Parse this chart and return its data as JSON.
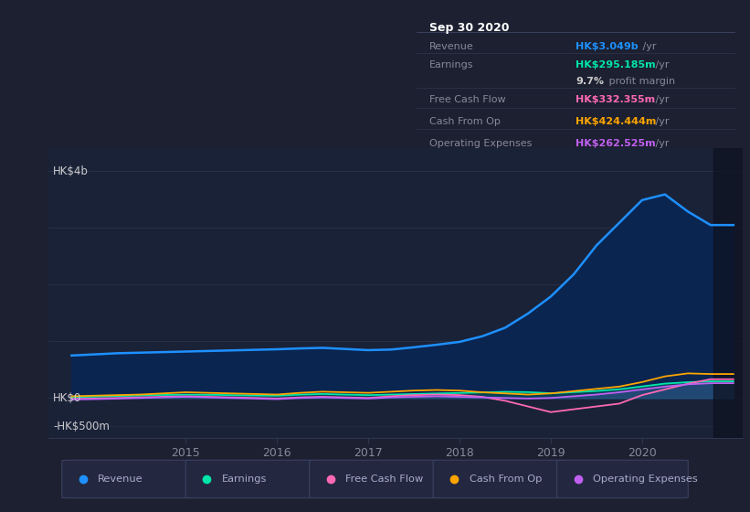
{
  "bg_color": "#1c2030",
  "plot_bg_color": "#1a2238",
  "grid_color": "#2e3650",
  "title_text": "Sep 30 2020",
  "info_box": {
    "rows": [
      {
        "label": "Revenue",
        "value": "HK$3.049b",
        "unit": " /yr",
        "value_color": "#1e90ff"
      },
      {
        "label": "Earnings",
        "value": "HK$295.185m",
        "unit": " /yr",
        "value_color": "#00e5aa"
      },
      {
        "label": "",
        "value": "9.7%",
        "unit": " profit margin",
        "value_color": "#cccccc"
      },
      {
        "label": "Free Cash Flow",
        "value": "HK$332.355m",
        "unit": " /yr",
        "value_color": "#ff69b4"
      },
      {
        "label": "Cash From Op",
        "value": "HK$424.444m",
        "unit": " /yr",
        "value_color": "#ffa500"
      },
      {
        "label": "Operating Expenses",
        "value": "HK$262.525m",
        "unit": " /yr",
        "value_color": "#c060f0"
      }
    ]
  },
  "ytick_labels": [
    "HK$4b",
    "HK$0",
    "-HK$500m"
  ],
  "ytick_values": [
    4000,
    0,
    -500
  ],
  "ylim": [
    -700,
    4400
  ],
  "xlim_start": 2013.5,
  "xlim_end": 2021.1,
  "vspan_x": 2020.78,
  "revenue_x": [
    2013.75,
    2014.0,
    2014.25,
    2014.5,
    2014.75,
    2015.0,
    2015.25,
    2015.5,
    2015.75,
    2016.0,
    2016.25,
    2016.5,
    2016.75,
    2017.0,
    2017.25,
    2017.5,
    2017.75,
    2018.0,
    2018.25,
    2018.5,
    2018.75,
    2019.0,
    2019.25,
    2019.5,
    2019.75,
    2020.0,
    2020.25,
    2020.5,
    2020.75,
    2021.0
  ],
  "revenue_y": [
    750,
    770,
    790,
    800,
    810,
    820,
    830,
    840,
    850,
    860,
    875,
    885,
    865,
    845,
    855,
    895,
    940,
    990,
    1090,
    1240,
    1490,
    1790,
    2180,
    2690,
    3090,
    3490,
    3590,
    3290,
    3050,
    3050
  ],
  "earnings_x": [
    2013.75,
    2014.0,
    2014.25,
    2014.5,
    2014.75,
    2015.0,
    2015.25,
    2015.5,
    2015.75,
    2016.0,
    2016.25,
    2016.5,
    2016.75,
    2017.0,
    2017.25,
    2017.5,
    2017.75,
    2018.0,
    2018.25,
    2018.5,
    2018.75,
    2019.0,
    2019.25,
    2019.5,
    2019.75,
    2020.0,
    2020.25,
    2020.5,
    2020.75,
    2021.0
  ],
  "earnings_y": [
    15,
    25,
    35,
    45,
    55,
    60,
    58,
    52,
    46,
    42,
    62,
    72,
    62,
    52,
    62,
    72,
    82,
    90,
    100,
    110,
    105,
    85,
    105,
    125,
    155,
    205,
    255,
    280,
    295,
    295
  ],
  "fcf_x": [
    2013.75,
    2014.0,
    2014.25,
    2014.5,
    2014.75,
    2015.0,
    2015.25,
    2015.5,
    2015.75,
    2016.0,
    2016.25,
    2016.5,
    2016.75,
    2017.0,
    2017.25,
    2017.5,
    2017.75,
    2018.0,
    2018.25,
    2018.5,
    2018.75,
    2019.0,
    2019.25,
    2019.5,
    2019.75,
    2020.0,
    2020.25,
    2020.5,
    2020.75,
    2021.0
  ],
  "fcf_y": [
    -15,
    -8,
    2,
    12,
    22,
    30,
    22,
    12,
    2,
    -8,
    12,
    22,
    12,
    2,
    32,
    52,
    62,
    52,
    22,
    -48,
    -148,
    -248,
    -198,
    -148,
    -98,
    52,
    152,
    252,
    332,
    332
  ],
  "cashop_x": [
    2013.75,
    2014.0,
    2014.25,
    2014.5,
    2014.75,
    2015.0,
    2015.25,
    2015.5,
    2015.75,
    2016.0,
    2016.25,
    2016.5,
    2016.75,
    2017.0,
    2017.25,
    2017.5,
    2017.75,
    2018.0,
    2018.25,
    2018.5,
    2018.75,
    2019.0,
    2019.25,
    2019.5,
    2019.75,
    2020.0,
    2020.25,
    2020.5,
    2020.75,
    2021.0
  ],
  "cashop_y": [
    32,
    42,
    52,
    62,
    82,
    102,
    92,
    82,
    72,
    62,
    92,
    112,
    102,
    92,
    112,
    132,
    142,
    132,
    102,
    82,
    62,
    82,
    122,
    162,
    202,
    282,
    382,
    435,
    424,
    424
  ],
  "opex_x": [
    2013.75,
    2014.0,
    2014.25,
    2014.5,
    2014.75,
    2015.0,
    2015.25,
    2015.5,
    2015.75,
    2016.0,
    2016.25,
    2016.5,
    2016.75,
    2017.0,
    2017.25,
    2017.5,
    2017.75,
    2018.0,
    2018.25,
    2018.5,
    2018.75,
    2019.0,
    2019.25,
    2019.5,
    2019.75,
    2020.0,
    2020.25,
    2020.5,
    2020.75,
    2021.0
  ],
  "opex_y": [
    -25,
    -18,
    -10,
    2,
    12,
    22,
    12,
    2,
    -8,
    -18,
    2,
    12,
    2,
    -8,
    12,
    22,
    32,
    22,
    12,
    2,
    -8,
    2,
    32,
    62,
    102,
    152,
    202,
    242,
    262,
    262
  ],
  "legend": [
    {
      "label": "Revenue",
      "color": "#1e90ff"
    },
    {
      "label": "Earnings",
      "color": "#00e5aa"
    },
    {
      "label": "Free Cash Flow",
      "color": "#ff69b4"
    },
    {
      "label": "Cash From Op",
      "color": "#ffa500"
    },
    {
      "label": "Operating Expenses",
      "color": "#c060f0"
    }
  ]
}
